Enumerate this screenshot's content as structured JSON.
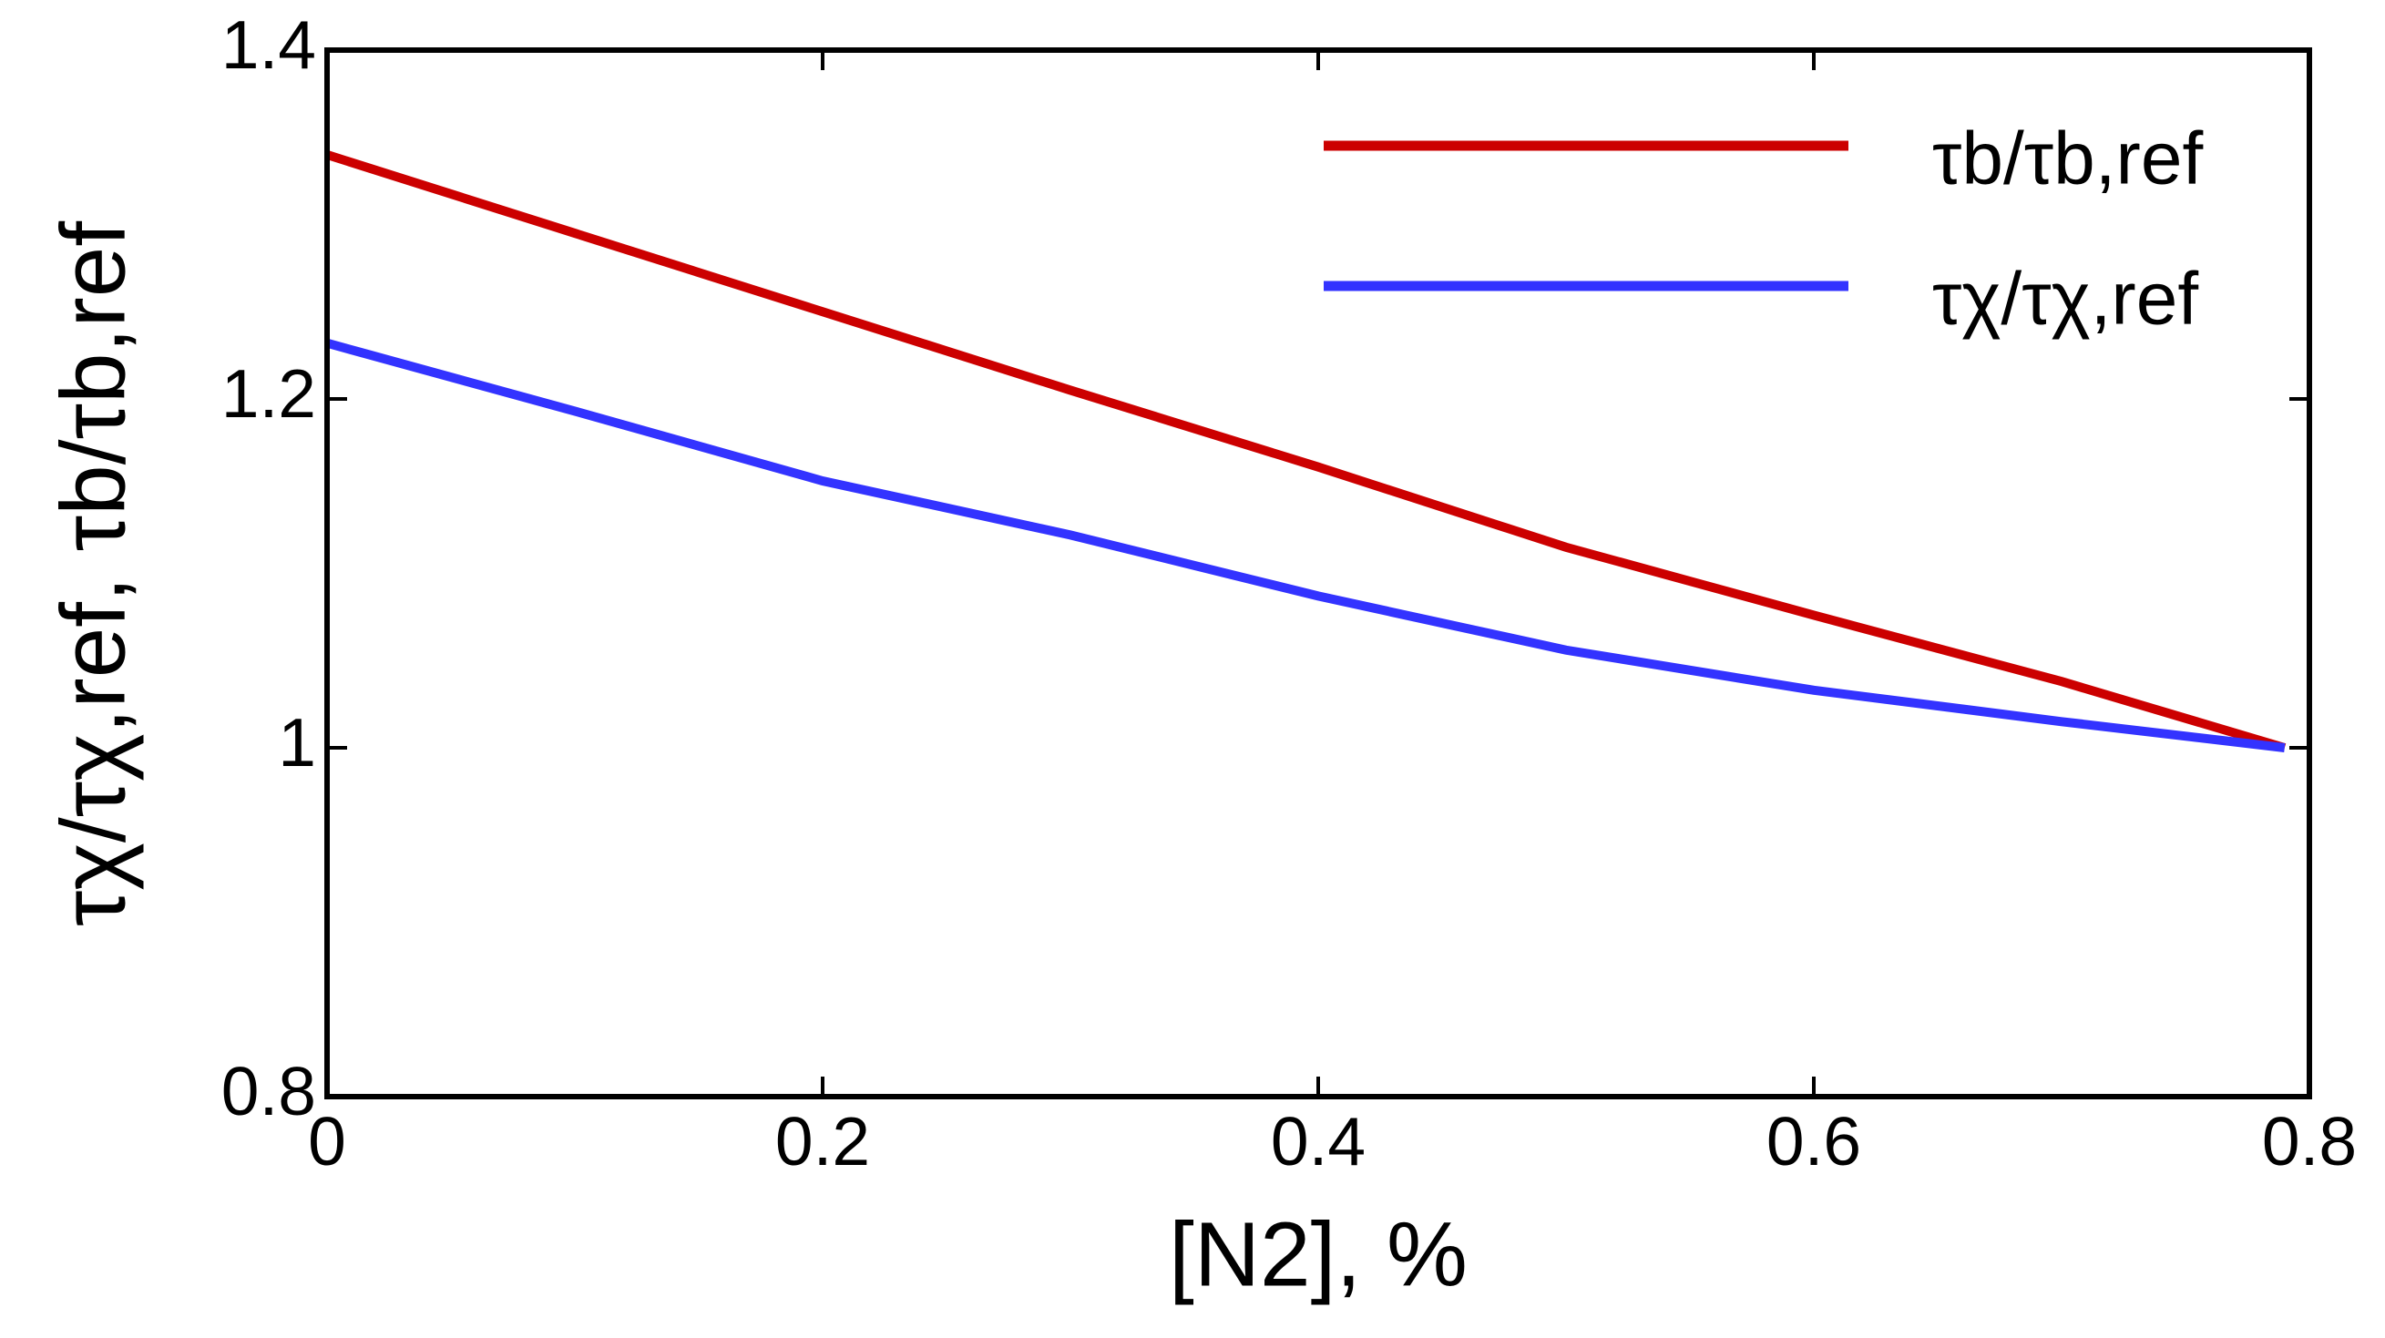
{
  "chart_data": {
    "type": "line",
    "x_label": "[N2], %",
    "y_label": "τχ/τχ,ref, τb/τb,ref",
    "xlim": [
      0,
      0.8
    ],
    "xticks": [
      0,
      0.2,
      0.4,
      0.6,
      0.8
    ],
    "ylim": [
      0.8,
      1.4
    ],
    "yticks": [
      0.8,
      1,
      1.2,
      1.4
    ],
    "grid": false,
    "legend": "upper right",
    "series": [
      {
        "name": "τb/τb,ref",
        "color": "#cc0000",
        "x": [
          0,
          0.1,
          0.2,
          0.3,
          0.4,
          0.5,
          0.6,
          0.7,
          0.79
        ],
        "values": [
          1.34,
          1.295,
          1.25,
          1.205,
          1.161,
          1.115,
          1.076,
          1.038,
          1.0
        ]
      },
      {
        "name": "τχ/τχ,ref",
        "color": "#3333ff",
        "x": [
          0,
          0.1,
          0.2,
          0.3,
          0.4,
          0.5,
          0.6,
          0.7,
          0.79
        ],
        "values": [
          1.232,
          1.193,
          1.153,
          1.122,
          1.087,
          1.056,
          1.033,
          1.015,
          1.0
        ]
      }
    ]
  }
}
